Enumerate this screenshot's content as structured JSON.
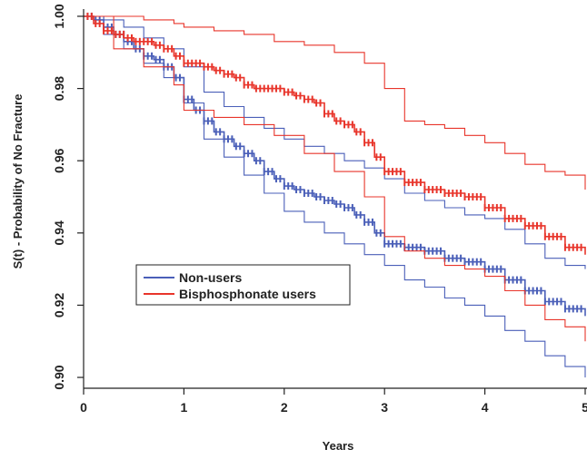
{
  "chart_data": {
    "type": "line",
    "title": "",
    "xlabel": "Years",
    "ylabel": "S(t) - Probability of No Fracture",
    "xlim": [
      0,
      5
    ],
    "ylim": [
      0.897,
      1.002
    ],
    "x_ticks": [
      0,
      1,
      2,
      3,
      4,
      5
    ],
    "y_ticks": [
      0.9,
      0.92,
      0.94,
      0.96,
      0.98,
      1.0
    ],
    "x_tick_labels": [
      "0",
      "1",
      "2",
      "3",
      "4",
      "5"
    ],
    "y_tick_labels": [
      "0.90",
      "0.92",
      "0.94",
      "0.96",
      "0.98",
      "1.00"
    ],
    "grid": false,
    "legend_position": "center-left",
    "colors": {
      "non_users": "#4a5fb8",
      "bisphosphonate_users": "#e8352b"
    },
    "series": [
      {
        "name": "Non-users",
        "role": "estimate",
        "color": "#4a5fb8",
        "x": [
          0,
          0.1,
          0.2,
          0.3,
          0.4,
          0.5,
          0.6,
          0.7,
          0.8,
          0.9,
          1.0,
          1.1,
          1.2,
          1.3,
          1.4,
          1.5,
          1.6,
          1.7,
          1.8,
          1.9,
          2.0,
          2.1,
          2.2,
          2.3,
          2.4,
          2.5,
          2.6,
          2.7,
          2.8,
          2.9,
          3.0,
          3.2,
          3.4,
          3.6,
          3.8,
          4.0,
          4.2,
          4.4,
          4.6,
          4.8,
          5.0
        ],
        "y": [
          1.0,
          0.999,
          0.997,
          0.995,
          0.993,
          0.991,
          0.989,
          0.988,
          0.986,
          0.983,
          0.977,
          0.974,
          0.971,
          0.968,
          0.966,
          0.964,
          0.962,
          0.96,
          0.957,
          0.955,
          0.953,
          0.952,
          0.951,
          0.95,
          0.949,
          0.948,
          0.947,
          0.945,
          0.943,
          0.94,
          0.937,
          0.936,
          0.935,
          0.933,
          0.932,
          0.93,
          0.927,
          0.924,
          0.921,
          0.919,
          0.917
        ],
        "markers": true
      },
      {
        "name": "Non-users",
        "role": "upper_ci",
        "color": "#4a5fb8",
        "x": [
          0,
          0.2,
          0.4,
          0.6,
          0.8,
          1.0,
          1.2,
          1.4,
          1.6,
          1.8,
          2.0,
          2.2,
          2.4,
          2.6,
          2.8,
          3.0,
          3.2,
          3.4,
          3.6,
          3.8,
          4.0,
          4.2,
          4.4,
          4.6,
          4.8,
          5.0
        ],
        "y": [
          1.0,
          0.999,
          0.997,
          0.994,
          0.991,
          0.986,
          0.979,
          0.975,
          0.972,
          0.969,
          0.966,
          0.964,
          0.962,
          0.96,
          0.958,
          0.955,
          0.951,
          0.949,
          0.947,
          0.945,
          0.944,
          0.941,
          0.937,
          0.933,
          0.931,
          0.93
        ]
      },
      {
        "name": "Non-users",
        "role": "lower_ci",
        "color": "#4a5fb8",
        "x": [
          0,
          0.2,
          0.4,
          0.6,
          0.8,
          1.0,
          1.2,
          1.4,
          1.6,
          1.8,
          2.0,
          2.2,
          2.4,
          2.6,
          2.8,
          3.0,
          3.2,
          3.4,
          3.6,
          3.8,
          4.0,
          4.2,
          4.4,
          4.6,
          4.8,
          5.0
        ],
        "y": [
          1.0,
          0.995,
          0.991,
          0.987,
          0.983,
          0.976,
          0.966,
          0.961,
          0.956,
          0.951,
          0.946,
          0.943,
          0.94,
          0.937,
          0.934,
          0.931,
          0.927,
          0.925,
          0.922,
          0.92,
          0.917,
          0.913,
          0.91,
          0.906,
          0.903,
          0.9
        ]
      },
      {
        "name": "Bisphosphonate users",
        "role": "estimate",
        "color": "#e8352b",
        "x": [
          0,
          0.1,
          0.2,
          0.3,
          0.4,
          0.5,
          0.6,
          0.7,
          0.8,
          0.9,
          1.0,
          1.1,
          1.2,
          1.3,
          1.4,
          1.5,
          1.6,
          1.7,
          1.8,
          1.9,
          2.0,
          2.1,
          2.2,
          2.3,
          2.4,
          2.5,
          2.6,
          2.7,
          2.8,
          2.9,
          3.0,
          3.2,
          3.4,
          3.6,
          3.8,
          4.0,
          4.2,
          4.4,
          4.6,
          4.8,
          5.0
        ],
        "y": [
          1.0,
          0.998,
          0.996,
          0.995,
          0.994,
          0.993,
          0.993,
          0.992,
          0.991,
          0.989,
          0.987,
          0.987,
          0.986,
          0.985,
          0.984,
          0.983,
          0.981,
          0.98,
          0.98,
          0.98,
          0.979,
          0.978,
          0.977,
          0.976,
          0.973,
          0.971,
          0.97,
          0.968,
          0.965,
          0.961,
          0.957,
          0.954,
          0.952,
          0.951,
          0.95,
          0.947,
          0.944,
          0.942,
          0.939,
          0.936,
          0.934
        ],
        "markers": true
      },
      {
        "name": "Bisphosphonate users",
        "role": "upper_ci",
        "color": "#e8352b",
        "x": [
          0,
          0.3,
          0.6,
          0.9,
          1.0,
          1.3,
          1.6,
          1.9,
          2.2,
          2.5,
          2.8,
          3.0,
          3.2,
          3.4,
          3.6,
          3.8,
          4.0,
          4.2,
          4.4,
          4.6,
          4.8,
          5.0
        ],
        "y": [
          1.0,
          1.0,
          0.999,
          0.998,
          0.997,
          0.996,
          0.995,
          0.993,
          0.992,
          0.99,
          0.987,
          0.98,
          0.971,
          0.97,
          0.969,
          0.967,
          0.965,
          0.962,
          0.959,
          0.957,
          0.956,
          0.952
        ]
      },
      {
        "name": "Bisphosphonate users",
        "role": "lower_ci",
        "color": "#e8352b",
        "x": [
          0,
          0.3,
          0.6,
          0.9,
          1.0,
          1.3,
          1.6,
          1.9,
          2.2,
          2.5,
          2.8,
          3.0,
          3.2,
          3.4,
          3.6,
          3.8,
          4.0,
          4.2,
          4.4,
          4.6,
          4.8,
          5.0
        ],
        "y": [
          1.0,
          0.991,
          0.986,
          0.981,
          0.974,
          0.972,
          0.97,
          0.967,
          0.962,
          0.957,
          0.95,
          0.939,
          0.935,
          0.933,
          0.931,
          0.93,
          0.928,
          0.924,
          0.92,
          0.916,
          0.914,
          0.91
        ]
      }
    ],
    "legend": [
      {
        "label": "Non-users",
        "color": "#4a5fb8"
      },
      {
        "label": "Bisphosphonate users",
        "color": "#e8352b"
      }
    ]
  }
}
